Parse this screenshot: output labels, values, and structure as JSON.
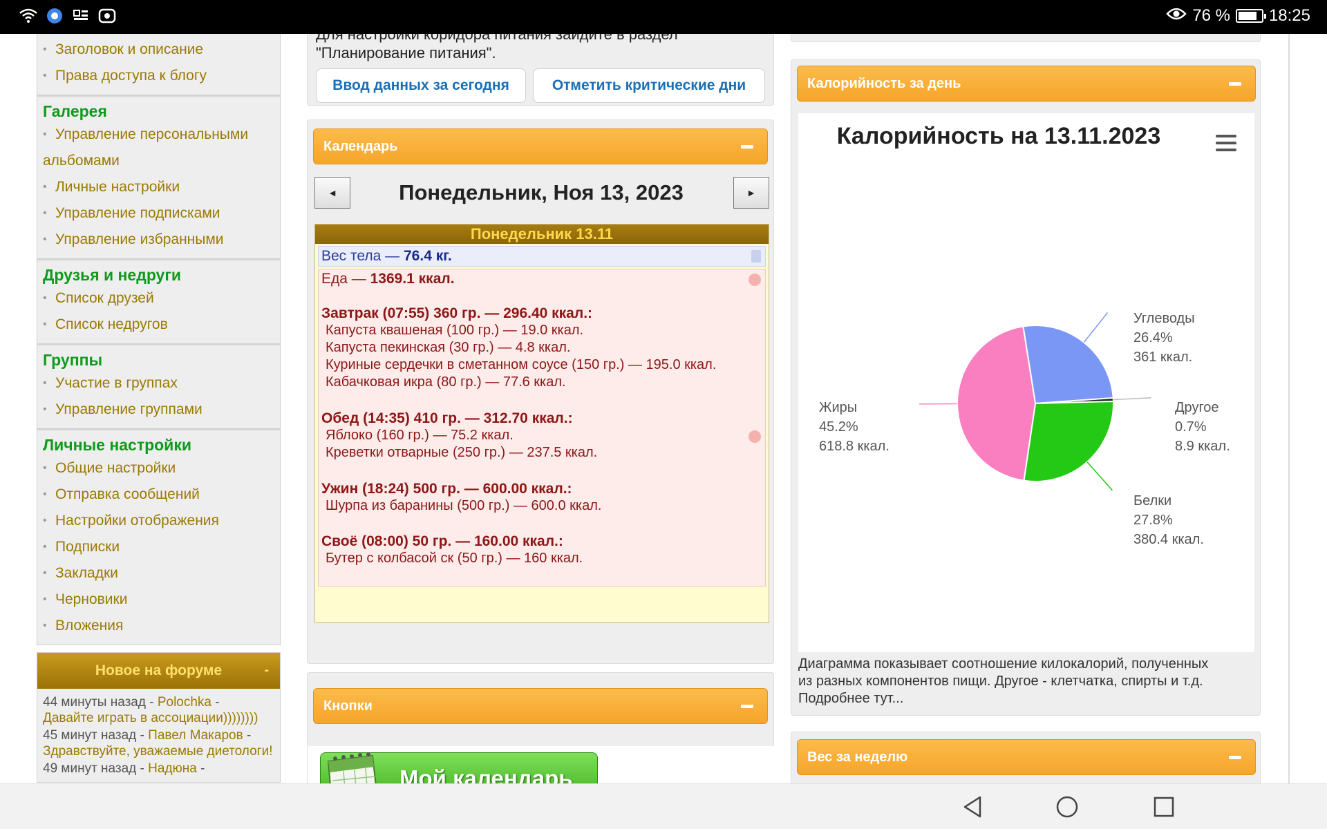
{
  "status_bar": {
    "battery_percent": "76 %",
    "time": "18:25"
  },
  "sidebar": {
    "top_items": [
      "Заголовок и описание",
      "Права доступа к блогу"
    ],
    "sections": [
      {
        "heading": "Галерея",
        "items": [
          "Управление персональными",
          "альбомами",
          "Личные настройки",
          "Управление подписками",
          "Управление избранными"
        ]
      },
      {
        "heading": "Друзья и недруги",
        "items": [
          "Список друзей",
          "Список недругов"
        ]
      },
      {
        "heading": "Группы",
        "items": [
          "Участие в группах",
          "Управление группами"
        ]
      },
      {
        "heading": "Личные настройки",
        "items": [
          "Общие настройки",
          "Отправка сообщений",
          "Настройки отображения",
          "Подписки",
          "Закладки",
          "Черновики",
          "Вложения"
        ]
      }
    ],
    "forum": {
      "title": "Новое на форуме",
      "minimize": "-",
      "posts": [
        {
          "time": "44 минуты назад - ",
          "user": "Polochka",
          "sep": " -",
          "text": "Давайте играть в ассоциации))))))))"
        },
        {
          "time": "45 минут назад - ",
          "user": "Павел Макаров",
          "sep": " -",
          "text": "Здравствуйте, уважаемые диетологи!"
        },
        {
          "time": "49 минут назад - ",
          "user": "Надюна",
          "sep": " -",
          "text": ""
        }
      ]
    }
  },
  "top_panel": {
    "intro_line1": "Для настройки коридора питания зайдите в раздел",
    "intro_line2": "\"Планирование питания\".",
    "btn_today": "Ввод данных за сегодня",
    "btn_critical": "Отметить критические дни"
  },
  "calendar": {
    "title": "Календарь",
    "prev": "◄",
    "next": "►",
    "date_heading": "Понедельник, Ноя 13, 2023",
    "day_title": "Понедельник 13.11",
    "weight_label": "Вес тела — ",
    "weight_value": "76.4 кг.",
    "food_label": "Еда — ",
    "food_value": "1369.1 ккал.",
    "meals": [
      {
        "title": "Завтрак (07:55) 360 гр. — 296.40 ккал.:",
        "items": [
          "Капуста квашеная (100 гр.) — 19.0 ккал.",
          "Капуста пекинская (30 гр.) — 4.8 ккал.",
          "Куриные сердечки в сметанном соусе (150 гр.) — 195.0 ккал.",
          "Кабачковая икра (80 гр.) — 77.6 ккал."
        ]
      },
      {
        "title": "Обед (14:35) 410 гр. — 312.70 ккал.:",
        "items": [
          "Яблоко (160 гр.) — 75.2 ккал.",
          "Креветки отварные (250 гр.) — 237.5 ккал."
        ]
      },
      {
        "title": "Ужин (18:24) 500 гр. — 600.00 ккал.:",
        "items": [
          "Шурпа из баранины (500 гр.) — 600.0 ккал."
        ]
      },
      {
        "title": "Своё (08:00) 50 гр. — 160.00 ккал.:",
        "items": [
          "Бутер с колбасой ск (50 гр.) — 160 ккал."
        ]
      }
    ]
  },
  "buttons_panel": {
    "title": "Кнопки",
    "my_calendar": "Мой календарь"
  },
  "calories_panel": {
    "title": "Калорийность за день",
    "description_lines": [
      "Диаграмма показывает соотношение килокалорий, полученных",
      "из разных компонентов пищи. Другое - клетчатка, спирты и т.д.",
      "Подробнее тут..."
    ]
  },
  "chart_data": {
    "type": "pie",
    "title": "Калорийность на 13.11.2023",
    "slices": [
      {
        "name": "Углеводы",
        "percent": "26.4%",
        "kcal": "361 ккал.",
        "value": 26.4,
        "color": "#7b97f5"
      },
      {
        "name": "Другое",
        "percent": "0.7%",
        "kcal": "8.9 ккал.",
        "value": 0.7,
        "color": "#222222"
      },
      {
        "name": "Белки",
        "percent": "27.8%",
        "kcal": "380.4 ккал.",
        "value": 27.8,
        "color": "#23c914"
      },
      {
        "name": "Жиры",
        "percent": "45.2%",
        "kcal": "618.8 ккал.",
        "value": 45.2,
        "color": "#fa7fc1"
      }
    ]
  },
  "weight_panel": {
    "title": "Вес за неделю"
  },
  "colors": {
    "orange_header": "#f7a935",
    "sidebar_heading": "#0f9a1c",
    "sidebar_link": "#9a7a00",
    "meal_text": "#9b1b1b",
    "link_blue": "#1a6fb5"
  }
}
